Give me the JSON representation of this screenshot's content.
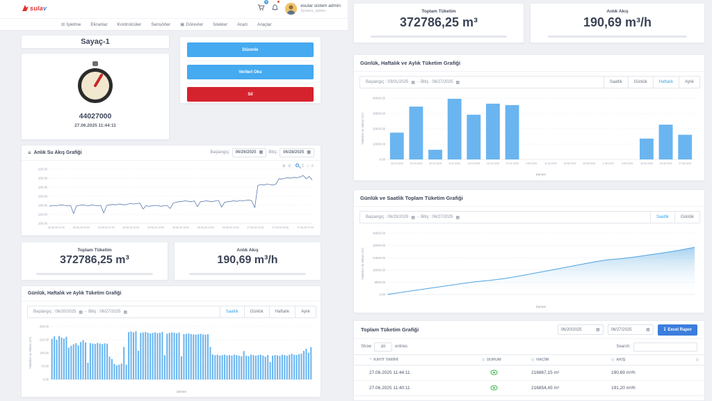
{
  "header": {
    "logo": "sulav",
    "nav": [
      {
        "label": "İşletme",
        "icon": "grid-icon"
      },
      {
        "label": "Ekranlar"
      },
      {
        "label": "Kontrolcüler"
      },
      {
        "label": "Sensörler"
      },
      {
        "label": "Görevler",
        "icon": "tasks-icon"
      },
      {
        "label": "İstekler"
      },
      {
        "label": "Arazi"
      },
      {
        "label": "Araçlar"
      }
    ],
    "cart_badge": "0",
    "user_name": "esular sistem admin",
    "user_role": "System_admin"
  },
  "meter": {
    "title": "Sayaç-1",
    "value": "44027000",
    "timestamp": "27.06.2025 11:44:11",
    "edit_button": "Düzenle",
    "read_button": "Verileri Oku",
    "delete_button": "Sil"
  },
  "flow_card": {
    "title": "Anlık Su Akış Grafiği",
    "start_label": "Başlangıç:",
    "start_value": "06/26/2025",
    "end_label": "Bitiş:",
    "end_value": "06/28/2025"
  },
  "stats": {
    "total_label": "Toplam Tüketim",
    "total_value": "372786,25 m³",
    "flow_label": "Anlık Akış",
    "flow_value": "190,69 m³/h"
  },
  "hourly_card": {
    "title": "Günlük, Haftalık ve Aylık Tüketim Grafiği",
    "start_text": "Başlangıç : 06/20/2025",
    "dash": "-",
    "end_text": "Bitiş : 06/27/2025",
    "tabs": [
      {
        "label": "Saatlik",
        "active": true
      },
      {
        "label": "Günlük",
        "active": false
      },
      {
        "label": "Haftalık",
        "active": false
      },
      {
        "label": "Aylık",
        "active": false
      }
    ]
  },
  "weekly_card": {
    "title": "Günlük, Haftalık ve Aylık Tüketim Grafiği",
    "start_text": "Başlangıç : 03/01/2025",
    "dash": "-",
    "end_text": "Bitiş : 06/27/2025",
    "tabs": [
      {
        "label": "Saatlik",
        "active": false
      },
      {
        "label": "Günlük",
        "active": false
      },
      {
        "label": "Haftalık",
        "active": true
      },
      {
        "label": "Aylık",
        "active": false
      }
    ]
  },
  "cumulative_card": {
    "title": "Günlük ve Saatlik Toplam Tüketim Grafiği",
    "start_text": "Başlangıç : 06/20/2025",
    "dash": "-",
    "end_text": "Bitiş : 06/27/2025",
    "tabs": [
      {
        "label": "Saatlik",
        "active": true
      },
      {
        "label": "Günlük",
        "active": false
      }
    ]
  },
  "table_card": {
    "title": "Toplam Tüketim Grafiği",
    "date_from": "06/20/2025",
    "date_to": "06/27/2025",
    "excel_button": "Excel Rapor",
    "show_label": "Show",
    "entries_value": "10",
    "entries_label": "entries",
    "search_label": "Search:",
    "columns": [
      "KAYIT TARİHİ",
      "DURUM",
      "HACİM",
      "AKIŞ"
    ],
    "rows": [
      {
        "date": "27.06.2025 11:44:11",
        "status": "eye",
        "volume": "216867,15 m³",
        "flow": "190,69 m³/h"
      },
      {
        "date": "27.06.2025 11:40:11",
        "status": "eye",
        "volume": "216854,45 m³",
        "flow": "191,20 m³/h"
      }
    ]
  },
  "chart_data": [
    {
      "id": "flow_line",
      "type": "line",
      "title": "Anlık Su Akış Grafiği",
      "ylabel": "",
      "xlabel": "",
      "ylim": [
        100,
        220
      ],
      "yticks": [
        100,
        120,
        140,
        160,
        180,
        200,
        220
      ],
      "x_ticks": [
        "26.06.25 01:00",
        "26.06.25 04:00",
        "26.06.25 07:00",
        "26.06.25 10:00",
        "26.06.25 13:00",
        "26.06.25 16:00",
        "26.06.25 19:00",
        "26.06.25 22:00",
        "27.06.25 01:00",
        "27.06.25 04:00",
        "27.06.25 07:00"
      ],
      "color": "#5b79ad",
      "values": [
        138,
        140,
        139,
        140,
        141,
        140,
        139,
        140,
        122,
        139,
        140,
        141,
        140,
        139,
        141,
        140,
        139,
        140,
        123,
        140,
        141,
        142,
        141,
        143,
        142,
        141,
        143,
        144,
        143,
        144,
        145,
        132,
        139,
        138,
        139,
        140,
        139,
        138,
        139,
        140,
        133,
        145,
        147,
        148,
        149,
        150,
        149,
        148,
        150,
        137,
        148,
        149,
        150,
        149,
        148,
        150,
        151,
        136,
        147,
        148,
        149,
        150,
        149,
        151,
        150,
        151,
        152,
        150,
        135,
        184,
        186,
        185,
        187,
        186,
        185,
        187,
        199,
        198,
        200,
        201,
        200,
        202,
        201,
        203,
        206,
        199,
        204,
        196
      ]
    },
    {
      "id": "hourly_bars",
      "type": "bar",
      "ylabel": "Tüketilen Su Miktarı (m³)",
      "xlabel": "Zaman",
      "ylim": [
        0,
        280
      ],
      "yticks": [
        0,
        70,
        140,
        210,
        280
      ],
      "color": "#6ab5f0",
      "values": [
        215,
        228,
        210,
        230,
        222,
        216,
        226,
        168,
        178,
        186,
        192,
        180,
        198,
        208,
        196,
        88,
        192,
        190,
        188,
        193,
        190,
        187,
        191,
        189,
        120,
        108,
        82,
        74,
        78,
        84,
        172,
        78,
        250,
        254,
        249,
        255,
        152,
        246,
        249,
        251,
        247,
        243,
        246,
        249,
        245,
        247,
        251,
        128,
        242,
        246,
        249,
        247,
        244,
        248,
        122,
        240,
        241,
        243,
        240,
        238,
        237,
        239,
        241,
        238,
        237,
        239,
        172,
        132,
        128,
        131,
        126,
        129,
        131,
        127,
        129,
        126,
        131,
        129,
        126,
        123,
        150,
        126,
        123,
        131,
        129,
        126,
        129,
        131,
        126,
        121,
        129,
        92,
        126,
        129,
        127,
        125,
        131,
        129,
        126,
        131,
        136,
        131,
        129,
        133,
        136,
        151,
        162,
        141,
        171
      ]
    },
    {
      "id": "weekly_bars",
      "type": "bar",
      "ylabel": "Tüketilen Su Miktarı (m³)",
      "xlabel": "Zaman",
      "ylim": [
        0,
        40000
      ],
      "yticks": [
        0,
        10000,
        20000,
        30000,
        40000
      ],
      "color": "#6ab5f0",
      "categories": [
        "16.03.2025",
        "23.03.2025",
        "30.03.2025",
        "6.04.2025",
        "13.04.2025",
        "20.04.2025",
        "27.04.2025",
        "4.05.2025",
        "11.05.2025",
        "18.05.2025",
        "25.05.2025",
        "1.06.2025",
        "8.06.2025",
        "15.06.2025",
        "22.06.2025",
        "27.06.2025"
      ],
      "values": [
        17500,
        34500,
        6300,
        39600,
        29200,
        36400,
        35500,
        0,
        0,
        0,
        0,
        0,
        0,
        13600,
        22700,
        16100
      ]
    },
    {
      "id": "cumulative_area",
      "type": "area",
      "ylabel": "Tüketilen Su Miktarı (m³)",
      "xlabel": "Zaman",
      "ylim": [
        0,
        40000
      ],
      "yticks": [
        0,
        8000,
        16000,
        24000,
        32000,
        40000
      ],
      "color": "#4da3e0",
      "values": [
        0,
        1400,
        2800,
        4200,
        5600,
        7000,
        8300,
        9200,
        10400,
        12000,
        13800,
        15600,
        17400,
        19200,
        21000,
        22600,
        23400,
        24600,
        26000,
        27400,
        29000,
        30800
      ]
    }
  ]
}
